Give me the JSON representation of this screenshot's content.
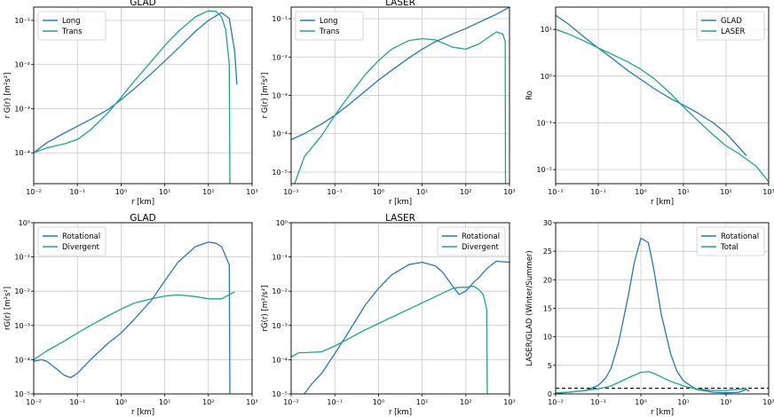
{
  "colors": {
    "series_a": "#2878b4",
    "series_b": "#1fa587",
    "reference": "#000000",
    "grid": "#c8c8c8"
  },
  "chart_data": [
    {
      "type": "line",
      "title": "GLAD",
      "xlabel": "r [km]",
      "ylabel": "r G(r) [m²s²]",
      "xscale": "log",
      "yscale": "log",
      "xlim": [
        0.01,
        1000
      ],
      "ylim": [
        2e-05,
        0.2
      ],
      "xticks": [
        0.01,
        0.1,
        1,
        10,
        100,
        1000
      ],
      "xticklabels": [
        "10⁻²",
        "10⁻¹",
        "10⁰",
        "10¹",
        "10²",
        "10³"
      ],
      "yticks": [
        0.0001,
        0.001,
        0.01,
        0.1
      ],
      "yticklabels": [
        "10⁻⁴",
        "10⁻³",
        "10⁻²",
        "10⁻¹"
      ],
      "grid": true,
      "legend_position": "top-left",
      "series": [
        {
          "name": "Long",
          "x": [
            0.01,
            0.02,
            0.05,
            0.1,
            0.2,
            0.5,
            1,
            2,
            5,
            10,
            20,
            50,
            100,
            200,
            300,
            400,
            450
          ],
          "y": [
            0.0001,
            0.00017,
            0.00028,
            0.0004,
            0.00057,
            0.00095,
            0.0016,
            0.0028,
            0.0063,
            0.012,
            0.023,
            0.056,
            0.1,
            0.15,
            0.11,
            0.02,
            0.0035
          ]
        },
        {
          "name": "Trans",
          "x": [
            0.01,
            0.02,
            0.05,
            0.1,
            0.2,
            0.5,
            1,
            2,
            5,
            10,
            20,
            50,
            100,
            150,
            200,
            250,
            300,
            310
          ],
          "y": [
            0.0001,
            0.00013,
            0.00016,
            0.0002,
            0.00033,
            0.0008,
            0.0018,
            0.0042,
            0.012,
            0.027,
            0.055,
            0.12,
            0.165,
            0.16,
            0.12,
            0.06,
            0.01,
            2e-05
          ]
        }
      ]
    },
    {
      "type": "line",
      "title": "LASER",
      "xlabel": "r [km]",
      "ylabel": "r G(r) [m²s²]",
      "xscale": "log",
      "yscale": "log",
      "xlim": [
        0.01,
        1000
      ],
      "ylim": [
        5e-06,
        0.2
      ],
      "xticks": [
        0.01,
        0.1,
        1,
        10,
        100,
        1000
      ],
      "xticklabels": [
        "10⁻²",
        "10⁻¹",
        "10⁰",
        "10¹",
        "10²",
        "10³"
      ],
      "yticks": [
        1e-05,
        0.0001,
        0.001,
        0.01,
        0.1
      ],
      "yticklabels": [
        "10⁻⁵",
        "10⁻⁴",
        "10⁻³",
        "10⁻²",
        "10⁻¹"
      ],
      "grid": true,
      "legend_position": "top-left",
      "series": [
        {
          "name": "Long",
          "x": [
            0.01,
            0.02,
            0.05,
            0.1,
            0.2,
            0.5,
            1,
            2,
            5,
            10,
            20,
            50,
            100,
            200,
            500,
            1000
          ],
          "y": [
            7e-05,
            0.0001,
            0.00018,
            0.0003,
            0.00055,
            0.0013,
            0.0025,
            0.0045,
            0.0095,
            0.016,
            0.025,
            0.04,
            0.055,
            0.08,
            0.13,
            0.2
          ]
        },
        {
          "name": "Trans",
          "x": [
            0.012,
            0.02,
            0.05,
            0.1,
            0.2,
            0.5,
            1,
            2,
            5,
            10,
            20,
            50,
            100,
            200,
            500,
            700,
            800,
            810
          ],
          "y": [
            5e-06,
            2.5e-05,
            9e-05,
            0.0003,
            0.0009,
            0.0035,
            0.008,
            0.016,
            0.027,
            0.03,
            0.028,
            0.018,
            0.016,
            0.022,
            0.045,
            0.04,
            0.025,
            5e-06
          ]
        }
      ]
    },
    {
      "type": "line",
      "title": "",
      "xlabel": "r [km]",
      "ylabel": "Ro",
      "xscale": "log",
      "yscale": "log",
      "xlim": [
        0.01,
        1000
      ],
      "ylim": [
        0.005,
        30
      ],
      "xticks": [
        0.01,
        0.1,
        1,
        10,
        100,
        1000
      ],
      "xticklabels": [
        "10⁻²",
        "10⁻¹",
        "10⁰",
        "10¹",
        "10²",
        "10³"
      ],
      "yticks": [
        0.01,
        0.1,
        1,
        10
      ],
      "yticklabels": [
        "10⁻²",
        "10⁻¹",
        "10⁰",
        "10¹"
      ],
      "grid": true,
      "legend_position": "top-right",
      "series": [
        {
          "name": "GLAD",
          "x": [
            0.01,
            0.02,
            0.05,
            0.1,
            0.2,
            0.5,
            1,
            2,
            5,
            10,
            20,
            50,
            100,
            200,
            300
          ],
          "y": [
            20,
            13,
            6.5,
            4,
            2.5,
            1.3,
            0.85,
            0.55,
            0.33,
            0.24,
            0.17,
            0.1,
            0.06,
            0.03,
            0.02
          ]
        },
        {
          "name": "LASER",
          "x": [
            0.01,
            0.02,
            0.05,
            0.1,
            0.2,
            0.5,
            1,
            2,
            5,
            10,
            20,
            50,
            100,
            200,
            500,
            1000
          ],
          "y": [
            10,
            8,
            5.5,
            4,
            3,
            2,
            1.4,
            0.9,
            0.42,
            0.22,
            0.12,
            0.055,
            0.032,
            0.022,
            0.012,
            0.0055
          ]
        }
      ]
    },
    {
      "type": "line",
      "title": "GLAD",
      "xlabel": "r [km]",
      "ylabel": "rG(r) [m²s²]",
      "xscale": "log",
      "yscale": "log",
      "xlim": [
        0.01,
        1000
      ],
      "ylim": [
        1e-05,
        1
      ],
      "xticks": [
        0.01,
        0.1,
        1,
        10,
        100,
        1000
      ],
      "xticklabels": [
        "10⁻²",
        "10⁻¹",
        "10⁰",
        "10¹",
        "10²",
        "10³"
      ],
      "yticks": [
        1e-05,
        0.0001,
        0.001,
        0.01,
        0.1,
        1
      ],
      "yticklabels": [
        "10⁻⁵",
        "10⁻⁴",
        "10⁻³",
        "10⁻²",
        "10⁻¹",
        "10⁰"
      ],
      "grid": true,
      "legend_position": "top-left",
      "series": [
        {
          "name": "Rotational",
          "x": [
            0.01,
            0.015,
            0.02,
            0.03,
            0.05,
            0.07,
            0.1,
            0.2,
            0.5,
            1,
            2,
            5,
            10,
            20,
            50,
            100,
            150,
            200,
            300,
            310
          ],
          "y": [
            9e-05,
            0.0001,
            9e-05,
            6e-05,
            3.5e-05,
            3e-05,
            4e-05,
            0.0001,
            0.0003,
            0.0006,
            0.0015,
            0.0055,
            0.02,
            0.07,
            0.2,
            0.27,
            0.25,
            0.2,
            0.06,
            1e-05
          ]
        },
        {
          "name": "Divergent",
          "x": [
            0.01,
            0.02,
            0.05,
            0.1,
            0.2,
            0.5,
            1,
            2,
            5,
            10,
            20,
            50,
            100,
            200,
            400
          ],
          "y": [
            0.0001,
            0.00018,
            0.00035,
            0.0006,
            0.001,
            0.0019,
            0.003,
            0.0045,
            0.006,
            0.0072,
            0.0078,
            0.007,
            0.006,
            0.006,
            0.0095
          ]
        }
      ]
    },
    {
      "type": "line",
      "title": "LASER",
      "xlabel": "r [km]",
      "ylabel": "rG(r) [m²/s²]",
      "xscale": "log",
      "yscale": "log",
      "xlim": [
        0.01,
        1000
      ],
      "ylim": [
        1e-05,
        1
      ],
      "xticks": [
        0.01,
        0.1,
        1,
        10,
        100,
        1000
      ],
      "xticklabels": [
        "10⁻²",
        "10⁻¹",
        "10⁰",
        "10¹",
        "10²",
        "10³"
      ],
      "yticks": [
        1e-05,
        0.0001,
        0.001,
        0.01,
        0.1,
        1
      ],
      "yticklabels": [
        "10⁻⁵",
        "10⁻⁴",
        "10⁻³",
        "10⁻²",
        "10⁻¹",
        "10⁰"
      ],
      "grid": true,
      "legend_position": "top-right",
      "series": [
        {
          "name": "Rotational",
          "x": [
            0.02,
            0.03,
            0.05,
            0.1,
            0.2,
            0.5,
            1,
            2,
            5,
            10,
            20,
            30,
            50,
            70,
            100,
            150,
            200,
            300,
            500,
            1000
          ],
          "y": [
            1e-05,
            2e-05,
            4e-05,
            0.00015,
            0.0006,
            0.004,
            0.012,
            0.03,
            0.06,
            0.07,
            0.055,
            0.035,
            0.014,
            0.008,
            0.01,
            0.018,
            0.025,
            0.045,
            0.075,
            0.07
          ]
        },
        {
          "name": "Divergent",
          "x": [
            0.01,
            0.015,
            0.02,
            0.05,
            0.1,
            0.2,
            0.5,
            50,
            70,
            100,
            150,
            200,
            250,
            300,
            310
          ],
          "y": [
            0.00012,
            0.00016,
            0.00016,
            0.00017,
            0.00025,
            0.0004,
            0.00075,
            0.012,
            0.013,
            0.013,
            0.014,
            0.011,
            0.008,
            0.003,
            1e-05
          ]
        }
      ]
    },
    {
      "type": "line",
      "title": "",
      "xlabel": "r [km]",
      "ylabel": "LASER/GLAD (Winter/Summer)",
      "xscale": "log",
      "yscale": "linear",
      "xlim": [
        0.01,
        1000
      ],
      "ylim": [
        0,
        30
      ],
      "xticks": [
        0.01,
        0.1,
        1,
        10,
        100,
        1000
      ],
      "xticklabels": [
        "10⁻²",
        "10⁻¹",
        "10⁰",
        "10¹",
        "10²",
        "10³"
      ],
      "yticks": [
        0,
        5,
        10,
        15,
        20,
        25,
        30
      ],
      "yticklabels": [
        "0",
        "5",
        "10",
        "15",
        "20",
        "25",
        "30"
      ],
      "grid": true,
      "legend_position": "top-right",
      "series": [
        {
          "name": "Rotational",
          "x": [
            0.01,
            0.02,
            0.05,
            0.1,
            0.15,
            0.2,
            0.3,
            0.5,
            0.7,
            1,
            1.5,
            2,
            3,
            5,
            7,
            10,
            20,
            50,
            100,
            200,
            300,
            350
          ],
          "y": [
            0.1,
            0.3,
            0.6,
            1.5,
            2.8,
            4.5,
            9,
            17,
            23,
            27.3,
            26.5,
            22,
            14,
            7,
            4,
            2.3,
            0.8,
            0.3,
            0.2,
            0.3,
            0.8,
            0.5
          ]
        },
        {
          "name": "Total",
          "x": [
            0.01,
            0.02,
            0.05,
            0.1,
            0.2,
            0.5,
            1,
            1.5,
            2,
            5,
            10,
            20,
            50,
            100,
            200,
            300
          ],
          "y": [
            0.2,
            0.3,
            0.6,
            0.9,
            1.4,
            2.8,
            3.8,
            3.9,
            3.6,
            2.2,
            1.4,
            0.9,
            0.6,
            0.6,
            0.8,
            1
          ]
        }
      ],
      "reference_lines": [
        {
          "y": 1,
          "style": "dashed"
        }
      ]
    }
  ]
}
